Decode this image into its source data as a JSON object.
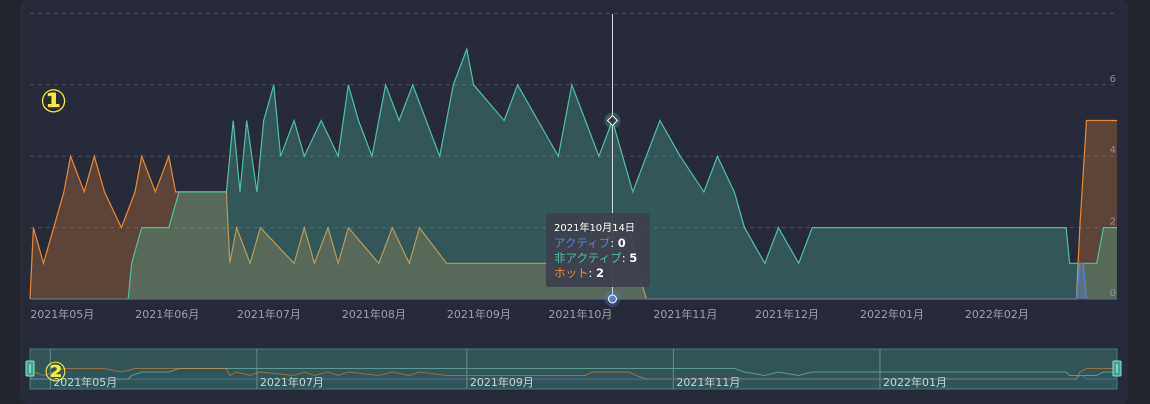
{
  "chart_data": {
    "type": "area",
    "x_axis": {
      "type": "date",
      "range": [
        "2021-04-25",
        "2022-03-12"
      ],
      "tick_labels": [
        "2021年05月",
        "2021年06月",
        "2021年07月",
        "2021年08月",
        "2021年09月",
        "2021年10月",
        "2021年11月",
        "2021年12月",
        "2022年01月",
        "2022年02月"
      ]
    },
    "y_axis": {
      "range": [
        0,
        8
      ],
      "tick_labels": [
        "0",
        "2",
        "4",
        "6"
      ],
      "grid": true,
      "position": "right"
    },
    "series": [
      {
        "name": "アクティブ",
        "color": "#5a7fd0",
        "points": [
          [
            "2021-04-25",
            0
          ],
          [
            "2022-02-28",
            0
          ],
          [
            "2022-03-01",
            1
          ],
          [
            "2022-03-02",
            1
          ],
          [
            "2022-03-03",
            0
          ],
          [
            "2022-03-12",
            0
          ]
        ]
      },
      {
        "name": "非アクティブ",
        "color": "#4fbfa5",
        "points": [
          [
            "2021-04-25",
            0
          ],
          [
            "2021-05-24",
            0
          ],
          [
            "2021-05-25",
            1
          ],
          [
            "2021-05-28",
            2
          ],
          [
            "2021-06-05",
            2
          ],
          [
            "2021-06-08",
            3
          ],
          [
            "2021-06-22",
            3
          ],
          [
            "2021-06-24",
            5
          ],
          [
            "2021-06-26",
            3
          ],
          [
            "2021-06-28",
            5
          ],
          [
            "2021-07-01",
            3
          ],
          [
            "2021-07-03",
            5
          ],
          [
            "2021-07-06",
            6
          ],
          [
            "2021-07-08",
            4
          ],
          [
            "2021-07-12",
            5
          ],
          [
            "2021-07-15",
            4
          ],
          [
            "2021-07-20",
            5
          ],
          [
            "2021-07-25",
            4
          ],
          [
            "2021-07-28",
            6
          ],
          [
            "2021-07-31",
            5
          ],
          [
            "2021-08-04",
            4
          ],
          [
            "2021-08-08",
            6
          ],
          [
            "2021-08-12",
            5
          ],
          [
            "2021-08-16",
            6
          ],
          [
            "2021-08-20",
            5
          ],
          [
            "2021-08-24",
            4
          ],
          [
            "2021-08-28",
            6
          ],
          [
            "2021-09-01",
            7
          ],
          [
            "2021-09-03",
            6
          ],
          [
            "2021-09-12",
            5
          ],
          [
            "2021-09-16",
            6
          ],
          [
            "2021-09-22",
            5
          ],
          [
            "2021-09-28",
            4
          ],
          [
            "2021-10-02",
            6
          ],
          [
            "2021-10-06",
            5
          ],
          [
            "2021-10-10",
            4
          ],
          [
            "2021-10-14",
            5
          ],
          [
            "2021-10-17",
            4
          ],
          [
            "2021-10-20",
            3
          ],
          [
            "2021-10-24",
            4
          ],
          [
            "2021-10-28",
            5
          ],
          [
            "2021-11-03",
            4
          ],
          [
            "2021-11-10",
            3
          ],
          [
            "2021-11-14",
            4
          ],
          [
            "2021-11-19",
            3
          ],
          [
            "2021-11-22",
            2
          ],
          [
            "2021-11-28",
            1
          ],
          [
            "2021-12-02",
            2
          ],
          [
            "2021-12-08",
            1
          ],
          [
            "2021-12-12",
            2
          ],
          [
            "2022-02-25",
            2
          ],
          [
            "2022-02-26",
            1
          ],
          [
            "2022-03-06",
            1
          ],
          [
            "2022-03-08",
            2
          ],
          [
            "2022-03-12",
            2
          ]
        ]
      },
      {
        "name": "ホット",
        "color": "#e8893a",
        "points": [
          [
            "2021-04-25",
            0
          ],
          [
            "2021-04-26",
            2
          ],
          [
            "2021-04-29",
            1
          ],
          [
            "2021-05-02",
            2
          ],
          [
            "2021-05-05",
            3
          ],
          [
            "2021-05-07",
            4
          ],
          [
            "2021-05-11",
            3
          ],
          [
            "2021-05-14",
            4
          ],
          [
            "2021-05-17",
            3
          ],
          [
            "2021-05-22",
            2
          ],
          [
            "2021-05-26",
            3
          ],
          [
            "2021-05-28",
            4
          ],
          [
            "2021-06-01",
            3
          ],
          [
            "2021-06-05",
            4
          ],
          [
            "2021-06-07",
            3
          ],
          [
            "2021-06-22",
            3
          ],
          [
            "2021-06-23",
            1
          ],
          [
            "2021-06-25",
            2
          ],
          [
            "2021-06-29",
            1
          ],
          [
            "2021-07-02",
            2
          ],
          [
            "2021-07-12",
            1
          ],
          [
            "2021-07-15",
            2
          ],
          [
            "2021-07-18",
            1
          ],
          [
            "2021-07-22",
            2
          ],
          [
            "2021-07-25",
            1
          ],
          [
            "2021-07-28",
            2
          ],
          [
            "2021-08-06",
            1
          ],
          [
            "2021-08-10",
            2
          ],
          [
            "2021-08-15",
            1
          ],
          [
            "2021-08-18",
            2
          ],
          [
            "2021-08-26",
            1
          ],
          [
            "2021-10-06",
            1
          ],
          [
            "2021-10-08",
            2
          ],
          [
            "2021-10-19",
            2
          ],
          [
            "2021-10-21",
            1
          ],
          [
            "2021-10-24",
            0
          ],
          [
            "2022-02-28",
            0
          ],
          [
            "2022-03-01",
            2
          ],
          [
            "2022-03-03",
            5
          ],
          [
            "2022-03-12",
            5
          ]
        ]
      }
    ],
    "tooltip": {
      "date": "2021年10月14日",
      "rows": [
        {
          "name": "アクティブ",
          "value": "0",
          "color": "#5a7fd0"
        },
        {
          "name": "非アクティブ",
          "value": "5",
          "color": "#4fbfa5"
        },
        {
          "name": "ホット",
          "value": "2",
          "color": "#e8893a"
        }
      ]
    },
    "crosshair_date": "2021-10-14",
    "navigator": {
      "tick_labels": [
        "2021年05月",
        "2021年07月",
        "2021年09月",
        "2021年11月",
        "2022年01月"
      ],
      "tick_dates": [
        "2021-05-01",
        "2021-07-01",
        "2021-09-01",
        "2021-11-01",
        "2022-01-01"
      ]
    },
    "annotations": [
      "①",
      "②"
    ]
  }
}
